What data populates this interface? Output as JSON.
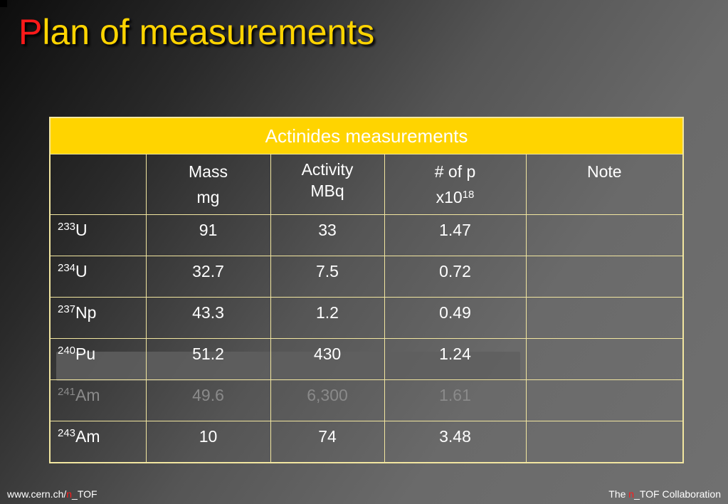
{
  "title": {
    "first_letter": "P",
    "rest": "lan of measurements"
  },
  "table": {
    "caption": "Actinides measurements",
    "headers": {
      "mass_line1": "Mass",
      "mass_line2": "mg",
      "activity_line1": "Activity",
      "activity_line2": "MBq",
      "protons_line1": "# of p",
      "protons_line2_base": "x10",
      "protons_line2_exp": "18",
      "note": "Note"
    },
    "rows": [
      {
        "mass_number": "233",
        "element": "U",
        "mass": "91",
        "activity": "33",
        "protons": "1.47",
        "note": ""
      },
      {
        "mass_number": "234",
        "element": "U",
        "mass": "32.7",
        "activity": "7.5",
        "protons": "0.72",
        "note": ""
      },
      {
        "mass_number": "237",
        "element": "Np",
        "mass": "43.3",
        "activity": "1.2",
        "protons": "0.49",
        "note": ""
      },
      {
        "mass_number": "240",
        "element": "Pu",
        "mass": "51.2",
        "activity": "430",
        "protons": "1.24",
        "note": ""
      },
      {
        "mass_number": "241",
        "element": "Am",
        "mass": "49.6",
        "activity": "6,300",
        "protons": "1.61",
        "note": ""
      },
      {
        "mass_number": "243",
        "element": "Am",
        "mass": "10",
        "activity": "74",
        "protons": "3.48",
        "note": ""
      }
    ]
  },
  "footer": {
    "left_prefix": "www.cern.ch/",
    "left_symbol": "n",
    "left_suffix": "_TOF",
    "right_prefix": "The ",
    "right_symbol": "n",
    "right_suffix": "_TOF Collaboration"
  },
  "colors": {
    "title": "#ffd400",
    "title_first_letter": "#ff1a1a",
    "caption_bg": "#ffd400",
    "table_border": "#f2e6a0"
  }
}
